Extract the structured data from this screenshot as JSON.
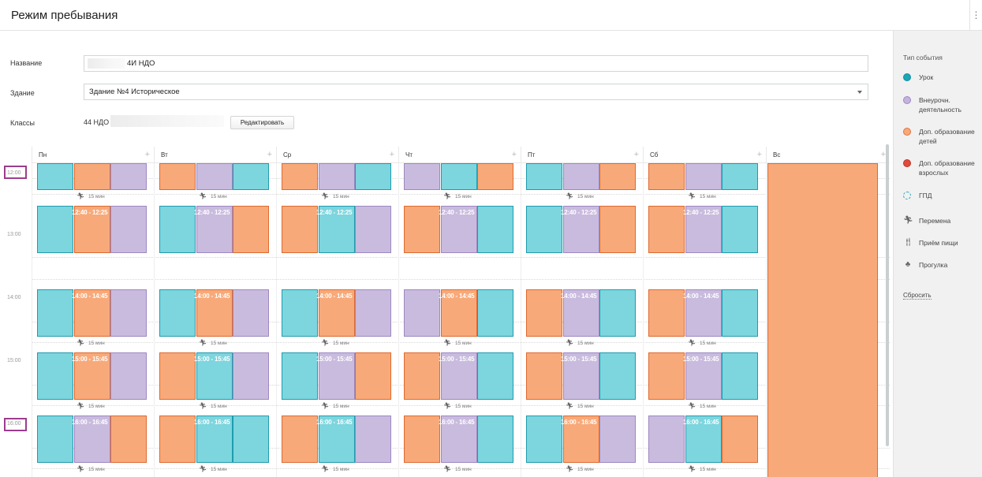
{
  "header": {
    "title": "Режим пребывания",
    "menu_icon": "kebab-menu-icon"
  },
  "form": {
    "name_label": "Название",
    "name_value": "4И НДО",
    "building_label": "Здание",
    "building_value": "Здание №4 Историческое",
    "classes_label": "Классы",
    "classes_value": "44 НДО",
    "edit_button": "Редактировать"
  },
  "days": [
    "Пн",
    "Вт",
    "Ср",
    "Чт",
    "Пт",
    "Сб",
    "Вс"
  ],
  "times": [
    "12:00",
    "13:00",
    "14:00",
    "15:00",
    "16:00"
  ],
  "slots": [
    {
      "label": "",
      "break": "15 мин"
    },
    {
      "label": "12:40 - 12:25",
      "break": ""
    },
    {
      "label": "14:00 - 14:45",
      "break": "15 мин"
    },
    {
      "label": "15:00 - 15:45",
      "break": "15 мин"
    },
    {
      "label": "16:00 - 16:45",
      "break": "15 мин"
    }
  ],
  "schedule": [
    [
      [
        "lesson",
        "kids",
        "extra"
      ],
      [
        "lesson",
        "kids",
        "extra"
      ],
      [
        "lesson",
        "kids",
        "extra"
      ],
      [
        "lesson",
        "kids",
        "extra"
      ],
      [
        "lesson",
        "extra",
        "kids"
      ]
    ],
    [
      [
        "kids",
        "extra",
        "lesson"
      ],
      [
        "lesson",
        "extra",
        "kids"
      ],
      [
        "lesson",
        "kids",
        "extra"
      ],
      [
        "kids",
        "lesson",
        "extra"
      ],
      [
        "kids",
        "lesson",
        "lesson"
      ]
    ],
    [
      [
        "kids",
        "extra",
        "lesson"
      ],
      [
        "kids",
        "lesson",
        "extra"
      ],
      [
        "lesson",
        "kids",
        "extra"
      ],
      [
        "lesson",
        "extra",
        "kids"
      ],
      [
        "kids",
        "lesson",
        "extra"
      ]
    ],
    [
      [
        "extra",
        "lesson",
        "kids"
      ],
      [
        "kids",
        "extra",
        "lesson"
      ],
      [
        "extra",
        "kids",
        "lesson"
      ],
      [
        "kids",
        "extra",
        "lesson"
      ],
      [
        "kids",
        "extra",
        "lesson"
      ]
    ],
    [
      [
        "lesson",
        "extra",
        "kids"
      ],
      [
        "lesson",
        "extra",
        "kids"
      ],
      [
        "kids",
        "extra",
        "lesson"
      ],
      [
        "kids",
        "extra",
        "lesson"
      ],
      [
        "lesson",
        "kids",
        "extra"
      ]
    ],
    [
      [
        "kids",
        "extra",
        "lesson"
      ],
      [
        "kids",
        "extra",
        "lesson"
      ],
      [
        "kids",
        "extra",
        "lesson"
      ],
      [
        "kids",
        "extra",
        "lesson"
      ],
      [
        "extra",
        "lesson",
        "kids"
      ]
    ]
  ],
  "sunday_block": "kids",
  "legend": {
    "title": "Тип события",
    "items": [
      {
        "label": "Урок",
        "color": "#19a7b6",
        "border": "#1389a1"
      },
      {
        "label": "Внеурочн. деятельность",
        "color": "#c3b4dd",
        "border": "#9d87c4"
      },
      {
        "label": "Доп. образование детей",
        "color": "#f8a979",
        "border": "#df7540"
      },
      {
        "label": "Доп. образование взрослых",
        "color": "#e14b3c",
        "border": "#b7342a"
      }
    ],
    "gpd": "ГПД",
    "break": "Перемена",
    "meal": "Приём пищи",
    "walk": "Прогулка",
    "reset": "Сбросить"
  },
  "colors": {
    "lesson": "#7dd5de",
    "extra": "#c9bbde",
    "kids": "#f8a979",
    "adults": "#e55a4a",
    "accent": "#9b3d8d"
  }
}
